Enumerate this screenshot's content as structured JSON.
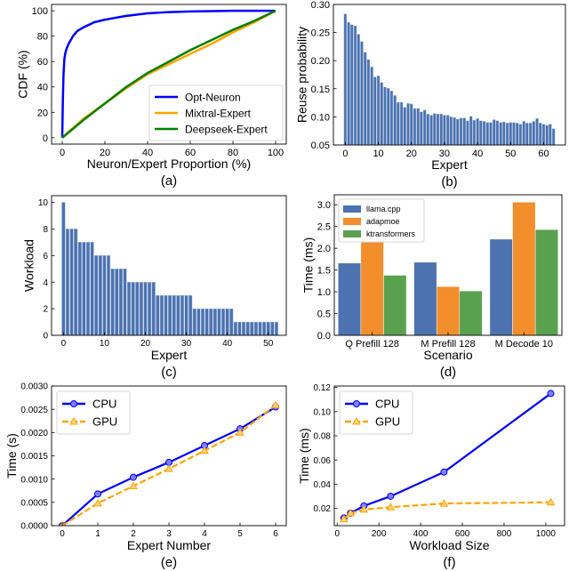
{
  "chart_data": [
    {
      "caption": "(a)",
      "type": "line",
      "xlabel": "Neuron/Expert Proportion (%)",
      "ylabel": "CDF (%)",
      "xlim": [
        -5,
        105
      ],
      "ylim": [
        -5,
        105
      ],
      "xticks": [
        0,
        20,
        40,
        60,
        80,
        100
      ],
      "yticks": [
        0,
        20,
        40,
        60,
        80,
        100
      ],
      "legend": "bottom-right",
      "grid": false,
      "series": [
        {
          "name": "Opt-Neuron",
          "color": "#0000ff",
          "x": [
            0,
            0.3,
            0.6,
            1,
            1.5,
            2,
            3,
            5,
            7,
            10,
            15,
            20,
            30,
            40,
            50,
            60,
            80,
            100
          ],
          "y": [
            0,
            30,
            50,
            62,
            67,
            70,
            74,
            80,
            84,
            87,
            91,
            93,
            96,
            98,
            99,
            99.5,
            100,
            100
          ]
        },
        {
          "name": "Mixtral-Expert",
          "color": "#ffa500",
          "x": [
            0,
            10,
            20,
            30,
            40,
            50,
            60,
            70,
            80,
            90,
            100
          ],
          "y": [
            0,
            15,
            27,
            39,
            50,
            58,
            66,
            74,
            83,
            91,
            100
          ]
        },
        {
          "name": "Deepseek-Expert",
          "color": "#008000",
          "x": [
            0,
            10,
            20,
            30,
            40,
            50,
            60,
            70,
            80,
            90,
            100
          ],
          "y": [
            0,
            14,
            27,
            40,
            51,
            60,
            69,
            77,
            85,
            92,
            100
          ]
        }
      ]
    },
    {
      "caption": "(b)",
      "type": "bar",
      "xlabel": "Expert",
      "ylabel": "Reuse probability",
      "xlim": [
        -3.6,
        66.6
      ],
      "ylim": [
        0.05,
        0.3
      ],
      "xticks": [
        0,
        10,
        20,
        30,
        40,
        50,
        60
      ],
      "yticks": [
        0.05,
        0.1,
        0.15,
        0.2,
        0.25,
        0.3
      ],
      "ytick_decimals": 2,
      "grid": false,
      "color": "#4c72b0",
      "values": [
        0.283,
        0.268,
        0.264,
        0.262,
        0.247,
        0.234,
        0.215,
        0.202,
        0.189,
        0.171,
        0.173,
        0.161,
        0.153,
        0.151,
        0.146,
        0.138,
        0.126,
        0.126,
        0.117,
        0.124,
        0.123,
        0.115,
        0.115,
        0.109,
        0.112,
        0.105,
        0.103,
        0.106,
        0.105,
        0.105,
        0.103,
        0.103,
        0.1,
        0.099,
        0.096,
        0.098,
        0.098,
        0.093,
        0.101,
        0.094,
        0.097,
        0.093,
        0.092,
        0.09,
        0.09,
        0.095,
        0.093,
        0.09,
        0.091,
        0.089,
        0.09,
        0.09,
        0.089,
        0.087,
        0.092,
        0.089,
        0.089,
        0.092,
        0.097,
        0.089,
        0.087,
        0.085,
        0.087,
        0.079
      ]
    },
    {
      "caption": "(c)",
      "type": "bar",
      "xlabel": "Expert",
      "ylabel": "Workload",
      "xlim": [
        -2.9,
        54.4
      ],
      "ylim": [
        0,
        10.5
      ],
      "xticks": [
        0,
        10,
        20,
        30,
        40,
        50
      ],
      "yticks": [
        0,
        2,
        4,
        6,
        8,
        10
      ],
      "grid": false,
      "color": "#4c72b0",
      "values": [
        10,
        8,
        8,
        8,
        7,
        7,
        7,
        7,
        6,
        6,
        6,
        6,
        5,
        5,
        5,
        5,
        4,
        4,
        4,
        4,
        4,
        4,
        4,
        3,
        3,
        3,
        3,
        3,
        3,
        3,
        3,
        3,
        2,
        2,
        2,
        2,
        2,
        2,
        2,
        2,
        2,
        2,
        1,
        1,
        1,
        1,
        1,
        1,
        1,
        1,
        1,
        1,
        1
      ]
    },
    {
      "caption": "(d)",
      "type": "bar",
      "xlabel": "Scenario",
      "ylabel": "Time (ms)",
      "ylim": [
        0,
        3.23
      ],
      "yticks": [
        0.0,
        0.5,
        1.0,
        1.5,
        2.0,
        2.5,
        3.0
      ],
      "ytick_decimals": 1,
      "legend": "top-left",
      "grid": false,
      "categories": [
        "Q Prefill 128",
        "M Prefill 128",
        "M Decode 10"
      ],
      "series": [
        {
          "name": "llama.cpp",
          "color": "#4c72b0",
          "values": [
            1.66,
            1.68,
            2.21
          ]
        },
        {
          "name": "adapmoe",
          "color": "#f28e2b",
          "values": [
            2.14,
            1.12,
            3.06
          ]
        },
        {
          "name": "ktransformers",
          "color": "#59a14f",
          "values": [
            1.38,
            1.02,
            2.43
          ]
        }
      ]
    },
    {
      "caption": "(e)",
      "type": "line",
      "xlabel": "Expert Number",
      "ylabel": "Time (s)",
      "xlim": [
        -0.3,
        6.3
      ],
      "ylim": [
        0,
        0.003
      ],
      "xticks": [
        0,
        1,
        2,
        3,
        4,
        5,
        6
      ],
      "yticks": [
        0,
        0.0005,
        0.001,
        0.0015,
        0.002,
        0.0025,
        0.003
      ],
      "ytick_decimals": 4,
      "legend": "top-left",
      "grid": false,
      "series": [
        {
          "name": "CPU",
          "color": "#0000ff",
          "marker": "circle",
          "dash": false,
          "x": [
            0,
            1,
            2,
            3,
            4,
            5,
            6
          ],
          "y": [
            0,
            0.00068,
            0.00104,
            0.00136,
            0.00172,
            0.00208,
            0.00255
          ]
        },
        {
          "name": "GPU",
          "color": "#ffa500",
          "marker": "triangle",
          "dash": true,
          "x": [
            0,
            1,
            2,
            3,
            4,
            5,
            6
          ],
          "y": [
            0,
            0.00048,
            0.00085,
            0.00122,
            0.00161,
            0.002,
            0.00259
          ]
        }
      ]
    },
    {
      "caption": "(f)",
      "type": "line",
      "xlabel": "Workload Size",
      "ylabel": "Time (ms)",
      "xlim": [
        -14,
        1090
      ],
      "ylim": [
        0.0057,
        0.1212
      ],
      "xticks": [
        0,
        200,
        400,
        600,
        800,
        1000
      ],
      "yticks": [
        0.02,
        0.04,
        0.06,
        0.08,
        0.1,
        0.12
      ],
      "ytick_decimals": 2,
      "legend": "top-left",
      "grid": false,
      "series": [
        {
          "name": "CPU",
          "color": "#0000ff",
          "marker": "circle",
          "dash": false,
          "x": [
            32,
            64,
            128,
            256,
            512,
            1024
          ],
          "y": [
            0.012,
            0.016,
            0.022,
            0.03,
            0.05,
            0.115
          ]
        },
        {
          "name": "GPU",
          "color": "#ffa500",
          "marker": "triangle",
          "dash": true,
          "x": [
            32,
            64,
            128,
            256,
            512,
            1024
          ],
          "y": [
            0.011,
            0.016,
            0.019,
            0.021,
            0.024,
            0.025
          ]
        }
      ]
    }
  ]
}
